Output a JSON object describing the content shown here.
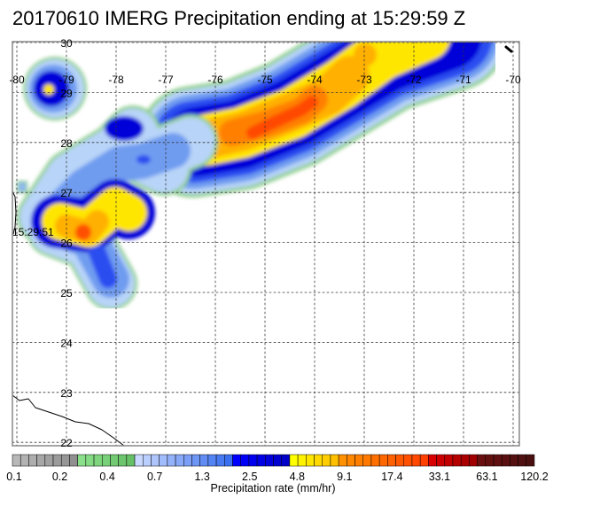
{
  "title": "20170610 IMERG Precipitation ending at 15:29:59 Z",
  "map": {
    "lon_labels": [
      "-80",
      "-79",
      "-78",
      "-77",
      "-76",
      "-75",
      "-74",
      "-73",
      "-72",
      "-71",
      "-70"
    ],
    "lat_labels": [
      "30",
      "29",
      "28",
      "27",
      "26",
      "25",
      "24",
      "23",
      "22"
    ],
    "swath_time_label": "15:29:51"
  },
  "colorbar": {
    "label": "Precipitation rate (mm/hr)",
    "ticks": [
      "0.1",
      "0.2",
      "0.4",
      "0.7",
      "1.3",
      "2.5",
      "4.8",
      "9.1",
      "17.4",
      "33.1",
      "63.1",
      "120.2"
    ],
    "colors": {
      "gray": "#a8a8a8",
      "green": "#74d47c",
      "light_blue": "#8fb8f0",
      "blue": "#3a64f0",
      "dark_blue": "#0000dc",
      "yellow": "#ffe600",
      "orange": "#ff8c00",
      "red": "#ff2a00",
      "dark_red": "#b00000",
      "brown": "#5a1010"
    }
  }
}
